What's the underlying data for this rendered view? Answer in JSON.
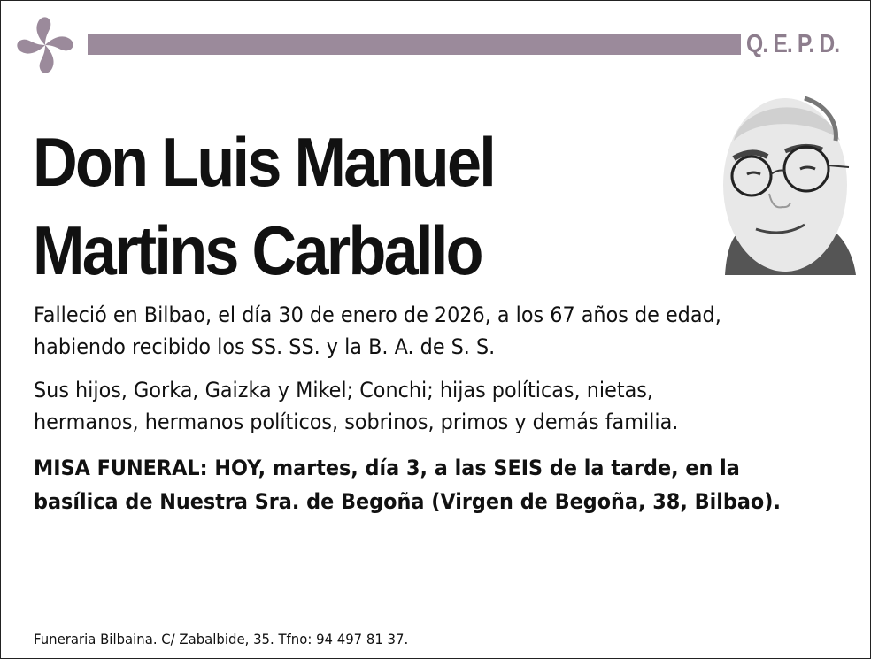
{
  "header": {
    "symbol": "lauburu-icon",
    "bar_color": "#9b8a9b",
    "qepd": "Q. E. P. D."
  },
  "deceased": {
    "name_line1": "Don Luis Manuel",
    "name_line2": "Martins Carballo",
    "photo": "portrait-photo"
  },
  "body": {
    "death_line1": "Falleció en Bilbao, el día 30 de enero de 2026, a los 67 años de edad,",
    "death_line2": "habiendo recibido los SS. SS. y la B. A. de S. S.",
    "family_line1": "Sus hijos, Gorka, Gaizka y Mikel; Conchi; hijas políticas, nietas,",
    "family_line2": "hermanos, hermanos políticos, sobrinos, primos y demás familia.",
    "funeral_line1": "MISA FUNERAL: HOY, martes, día 3, a las SEIS de la tarde, en la",
    "funeral_line2": "basílica de Nuestra Sra. de Begoña (Virgen de Begoña, 38, Bilbao)."
  },
  "footer": {
    "text": "Funeraria Bilbaina. C/ Zabalbide, 35. Tfno: 94 497 81 37."
  }
}
